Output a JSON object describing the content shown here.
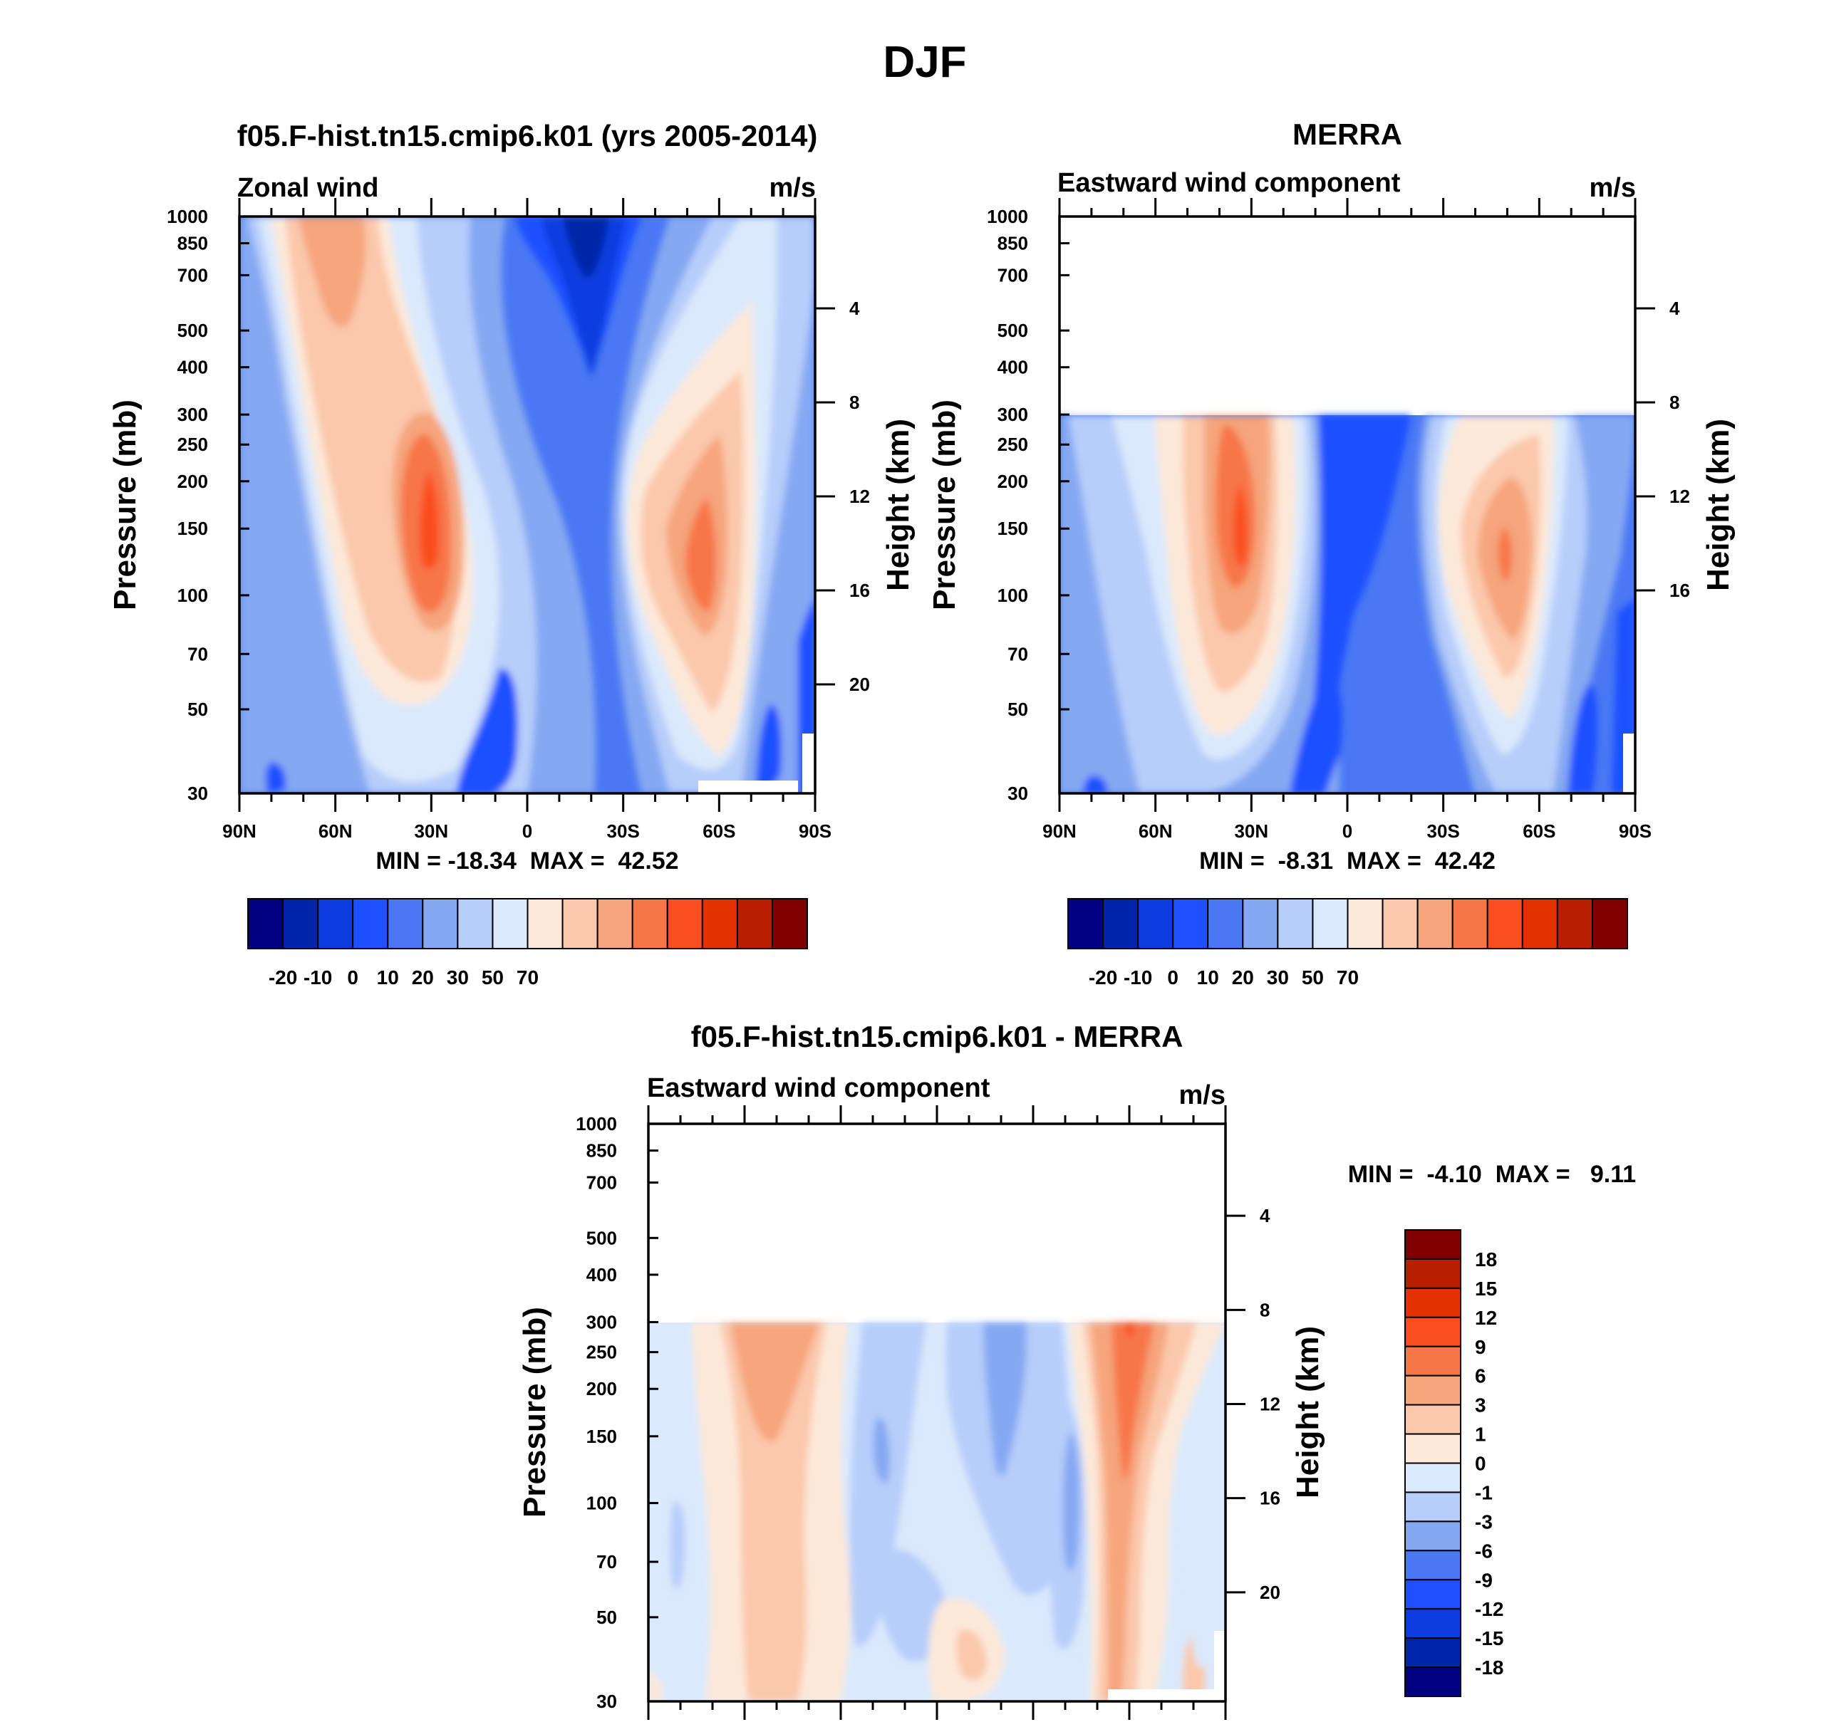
{
  "figure_title": "DJF",
  "colors": {
    "wind_levels": [
      "#000080",
      "#0025a8",
      "#0a3ce0",
      "#1e50ff",
      "#4a78f4",
      "#85a8f2",
      "#b7cdfa",
      "#dbe9fc",
      "#fde9d9",
      "#fbc8ac",
      "#f6a57d",
      "#f77648",
      "#fa4e1e",
      "#e33200",
      "#b81f00",
      "#800000"
    ],
    "diff_levels": [
      "#000080",
      "#0025a8",
      "#0a3ce0",
      "#1e50ff",
      "#4a78f4",
      "#85a8f2",
      "#b7cdfa",
      "#dbe9fc",
      "#fde9d9",
      "#fbc8ac",
      "#f6a57d",
      "#f77648",
      "#fa4e1e",
      "#e33200",
      "#b81f00",
      "#800000"
    ]
  },
  "chart_data": [
    {
      "type": "heatmap",
      "panel": "model",
      "title": "f05.F-hist.tn15.cmip6.k01 (yrs 2005-2014)",
      "variable": "Zonal wind",
      "units": "m/s",
      "ylabel": "Pressure (mb)",
      "ylabel_right": "Height (km)",
      "x_ticks": [
        "90N",
        "60N",
        "30N",
        "0",
        "30S",
        "60S",
        "90S"
      ],
      "y_ticks": [
        "30",
        "50",
        "70",
        "100",
        "150",
        "200",
        "250",
        "300",
        "400",
        "500",
        "700",
        "850",
        "1000"
      ],
      "height_ticks": [
        "20",
        "16",
        "12",
        "8",
        "4"
      ],
      "stats": "MIN = -18.34  MAX =  42.52",
      "pressure_range_mb": [
        1000,
        30
      ],
      "data_top_mb": 30,
      "colorbar_labels": [
        "-20",
        "-10",
        "0",
        "10",
        "20",
        "30",
        "50",
        "70"
      ],
      "jets": [
        {
          "lat": -30,
          "p": 200,
          "u": 42.5,
          "nh": true
        },
        {
          "lat": 52,
          "p": 230,
          "u": 37,
          "nh": false
        }
      ],
      "minimum": {
        "lat": 13,
        "p": 30,
        "u": -18.3
      }
    },
    {
      "type": "heatmap",
      "panel": "obs",
      "title": "MERRA",
      "variable": "Eastward wind component",
      "units": "m/s",
      "ylabel": "Pressure (mb)",
      "ylabel_right": "Height (km)",
      "x_ticks": [
        "90N",
        "60N",
        "30N",
        "0",
        "30S",
        "60S",
        "90S"
      ],
      "y_ticks": [
        "30",
        "50",
        "70",
        "100",
        "150",
        "200",
        "250",
        "300",
        "400",
        "500",
        "700",
        "850",
        "1000"
      ],
      "height_ticks": [
        "16",
        "12",
        "8",
        "4"
      ],
      "stats": "MIN =  -8.31  MAX =  42.42",
      "pressure_range_mb": [
        1000,
        30
      ],
      "data_top_mb": 100,
      "colorbar_labels": [
        "-20",
        "-10",
        "0",
        "10",
        "20",
        "30",
        "50",
        "70"
      ],
      "jets": [
        {
          "lat": -30,
          "p": 200,
          "u": 42.4,
          "nh": true
        },
        {
          "lat": 47,
          "p": 230,
          "u": 35,
          "nh": false
        }
      ]
    },
    {
      "type": "heatmap",
      "panel": "difference",
      "title": "f05.F-hist.tn15.cmip6.k01 - MERRA",
      "variable": "Eastward wind component",
      "units": "m/s",
      "ylabel": "Pressure (mb)",
      "ylabel_right": "Height (km)",
      "x_ticks": [
        "90N",
        "60N",
        "30N",
        "0",
        "30S",
        "60S",
        "90S"
      ],
      "y_ticks": [
        "30",
        "50",
        "70",
        "100",
        "150",
        "200",
        "250",
        "300",
        "400",
        "500",
        "700",
        "850",
        "1000"
      ],
      "height_ticks": [
        "20",
        "16",
        "12",
        "8",
        "4"
      ],
      "stats": "MIN =  -4.10  MAX =   9.11",
      "pressure_range_mb": [
        1000,
        30
      ],
      "data_top_mb": 100,
      "colorbar_labels": [
        "18",
        "15",
        "12",
        "9",
        "6",
        "3",
        "1",
        "0",
        "-1",
        "-3",
        "-6",
        "-9",
        "-12",
        "-15",
        "-18"
      ]
    }
  ]
}
